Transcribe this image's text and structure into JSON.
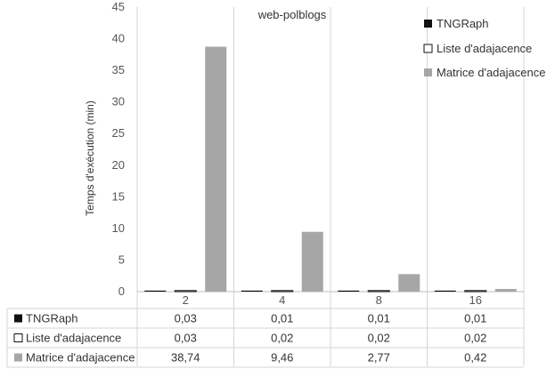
{
  "chart_data": {
    "type": "bar",
    "title": "web-polblogs",
    "xlabel": "",
    "ylabel": "Temps d'exécution (min)",
    "ylim": [
      0,
      45
    ],
    "yticks": [
      "0",
      "5",
      "10",
      "15",
      "20",
      "25",
      "30",
      "35",
      "40",
      "45"
    ],
    "categories": [
      "2",
      "4",
      "8",
      "16"
    ],
    "grid": "vertical separators between categories",
    "legend_position": "top-right",
    "series": [
      {
        "name": "TNGRaph",
        "color": "#111111",
        "values": [
          0.03,
          0.01,
          0.01,
          0.01
        ],
        "labels": [
          "0,03",
          "0,01",
          "0,01",
          "0,01"
        ]
      },
      {
        "name": "Liste d'adajacence",
        "color": "#ffffff",
        "stroke": "#111111",
        "values": [
          0.03,
          0.02,
          0.02,
          0.02
        ],
        "labels": [
          "0,03",
          "0,02",
          "0,02",
          "0,02"
        ]
      },
      {
        "name": "Matrice d'adajacence",
        "color": "#a6a6a6",
        "values": [
          38.74,
          9.46,
          2.77,
          0.42
        ],
        "labels": [
          "38,74",
          "9,46",
          "2,77",
          "0,42"
        ]
      }
    ]
  }
}
